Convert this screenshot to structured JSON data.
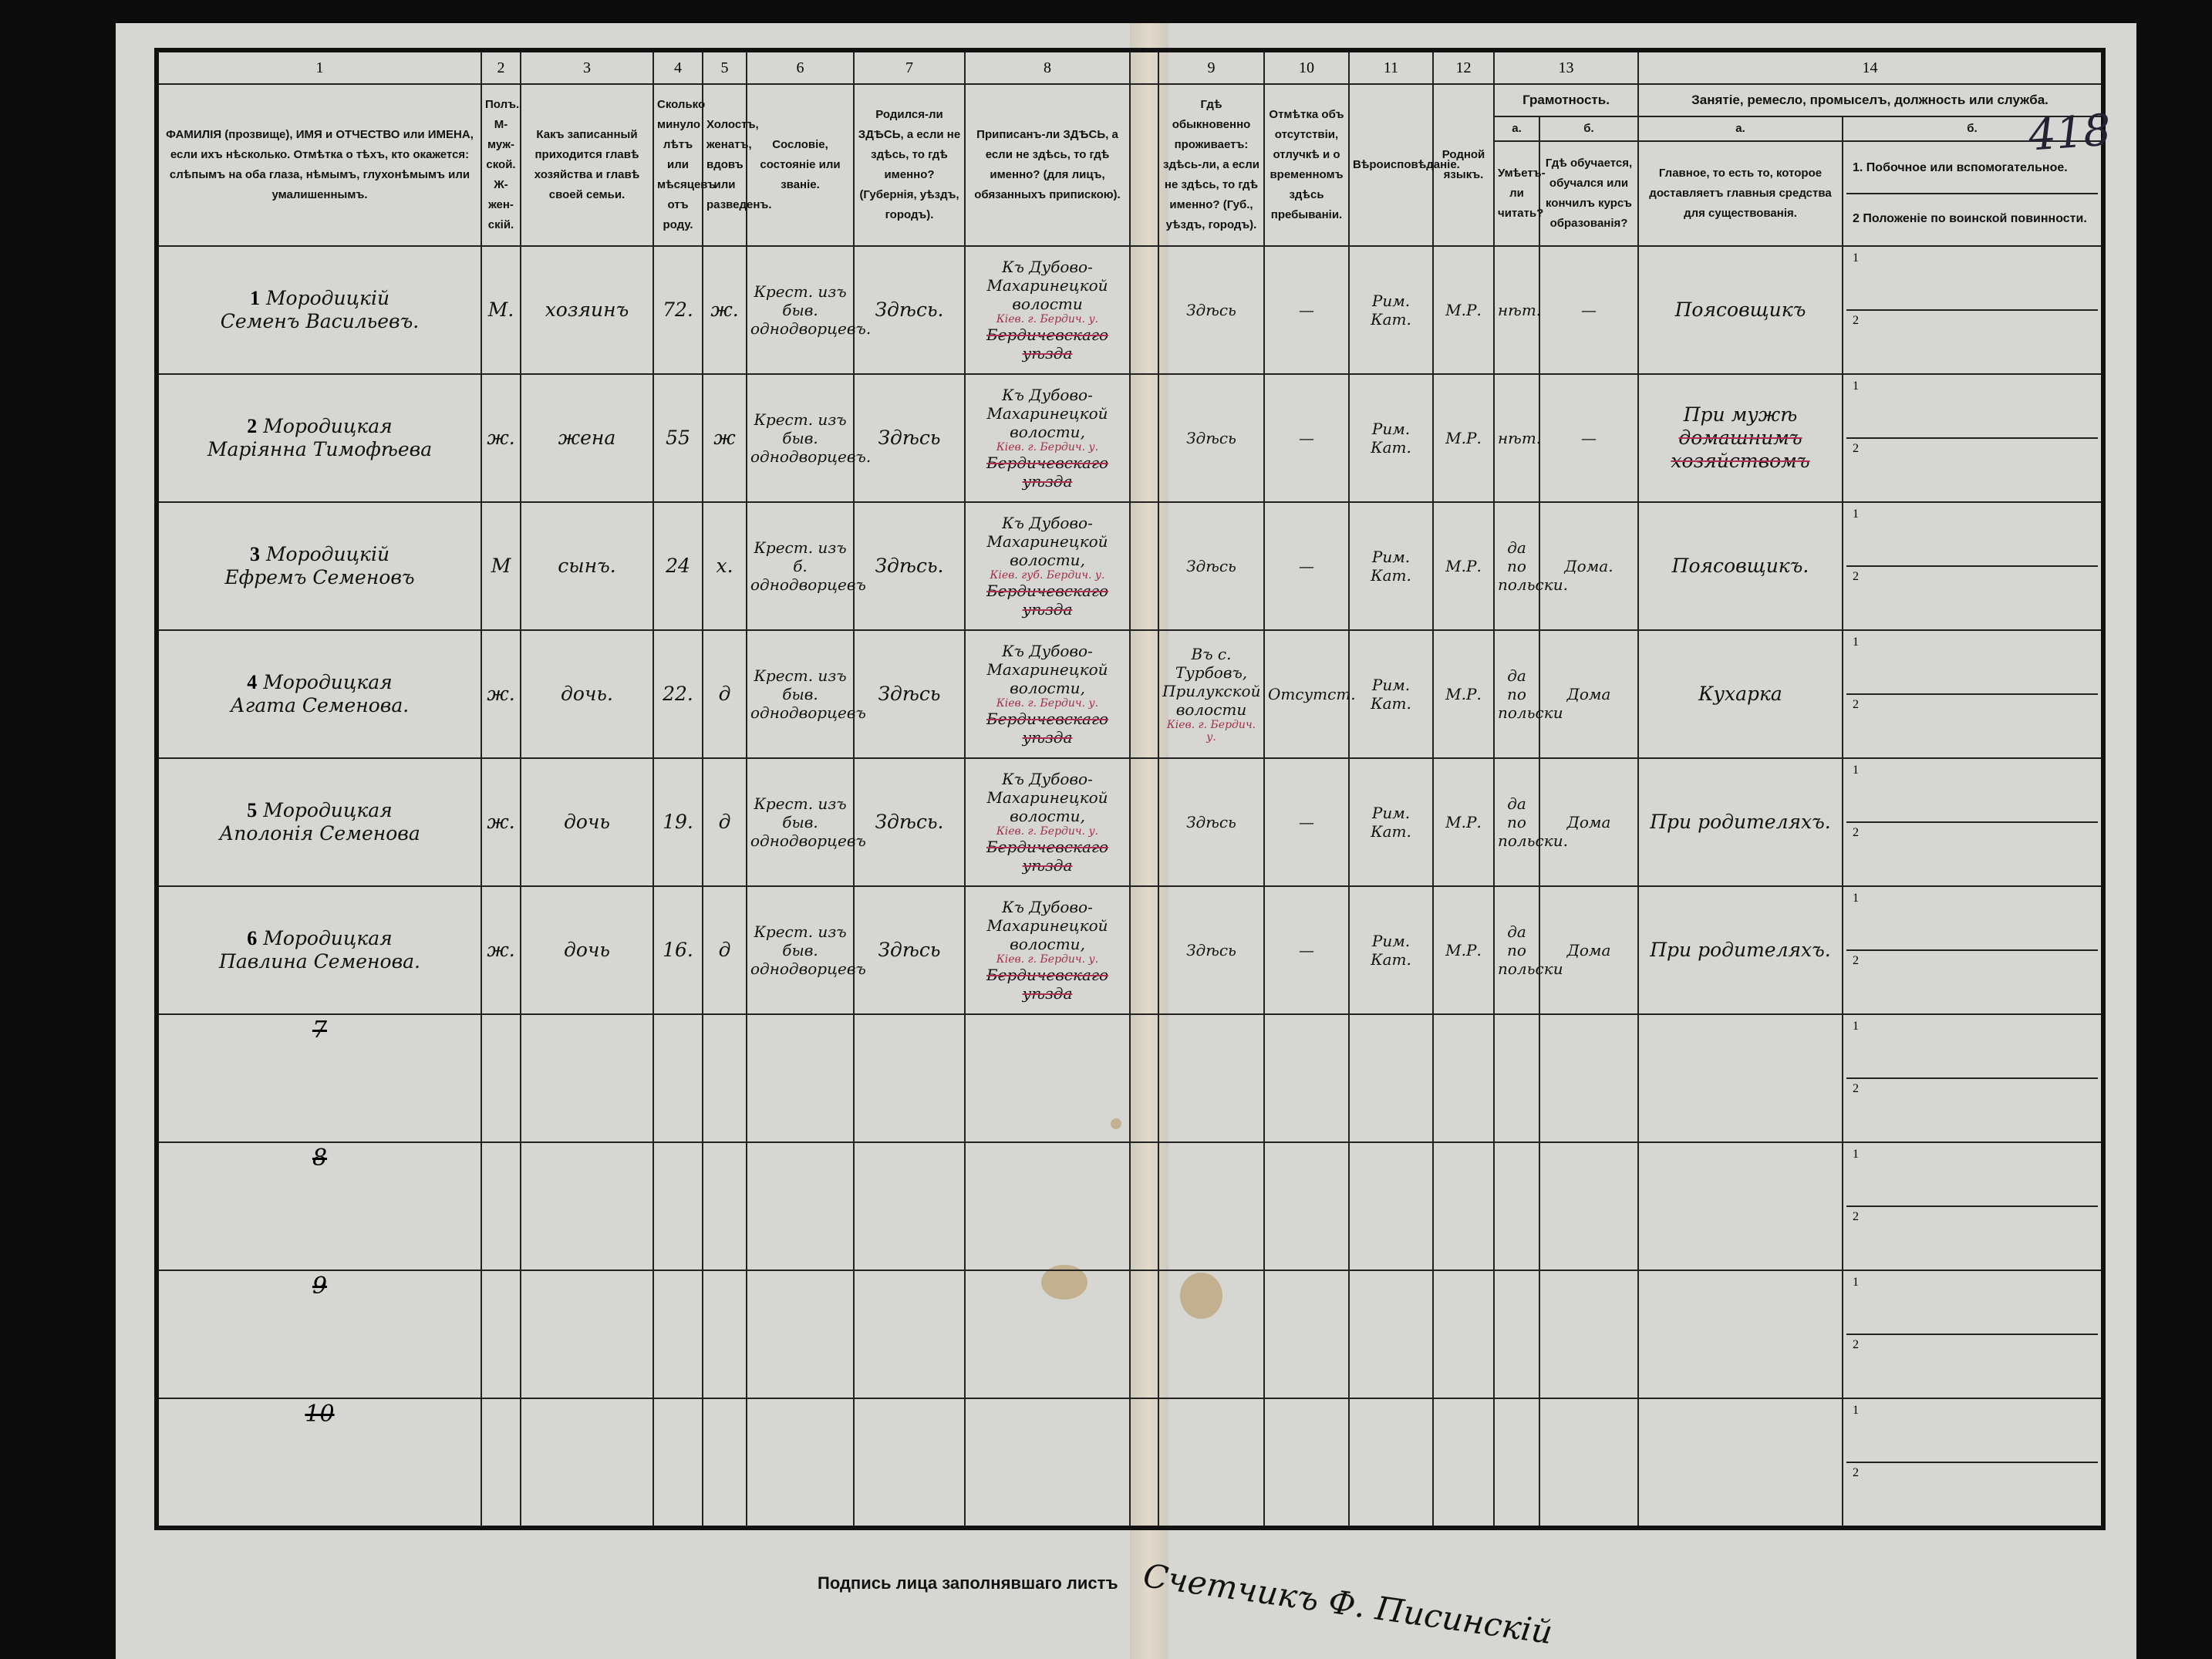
{
  "page_number": "418",
  "columns": [
    {
      "num": "1",
      "text": "ФАМИЛІЯ (прозвище), ИМЯ и ОТЧЕСТВО или ИМЕНА, если ихъ нѣсколько. Отмѣтка о тѣхъ, кто окажется: слѣпымъ на оба глаза, нѣмымъ, глухонѣмымъ или умалишеннымъ."
    },
    {
      "num": "2",
      "text": "Полъ. М-муж-ской. Ж-жен-скій."
    },
    {
      "num": "3",
      "text": "Какъ записанный приходится главѣ хозяйства и главѣ своей семьи."
    },
    {
      "num": "4",
      "text": "Сколько минуло лѣтъ или мѣсяцевъ отъ роду."
    },
    {
      "num": "5",
      "text": "Холостъ, женатъ, вдовъ или разведенъ."
    },
    {
      "num": "6",
      "text": "Сословіе, состояніе или званіе."
    },
    {
      "num": "7",
      "text": "Родился-ли ЗДѢСЬ, а если не здѣсь, то гдѣ именно? (Губернія, уѣздъ, городъ)."
    },
    {
      "num": "8",
      "text": "Приписанъ-ли ЗДѢСЬ, а если не здѣсь, то гдѣ именно? (для лицъ, обязанныхъ припискою)."
    },
    {
      "num": "9",
      "text": "Гдѣ обыкновенно проживаетъ: здѣсь-ли, а если не здѣсь, то гдѣ именно? (Губ., уѣздъ, городъ)."
    },
    {
      "num": "10",
      "text": "Отмѣтка объ отсутствіи, отлучкѣ и о временномъ здѣсь пребываніи."
    },
    {
      "num": "11",
      "text": "Вѣроисповѣданіе."
    },
    {
      "num": "12",
      "text": "Родной языкъ."
    }
  ],
  "literacy": {
    "num": "13",
    "title": "Грамотность.",
    "a_label": "а.",
    "b_label": "б.",
    "a_text": "Умѣетъ-ли читать?",
    "b_text": "Гдѣ обучается, обучался или кончилъ курсъ образованія?"
  },
  "occupation": {
    "num": "14",
    "title": "Занятіе, ремесло, промыселъ, должность или служба.",
    "a_label": "а.",
    "b_label": "б.",
    "a_text": "Главное, то есть то, которое доставляетъ главныя средства для существованія.",
    "b1_text": "1. Побочное или вспомогательное.",
    "b2_text": "2 Положеніе по воинской повинности.",
    "b1_mark": "1",
    "b2_mark": "2"
  },
  "rows": [
    {
      "n": "1",
      "surname": "Мородицкій",
      "name": "Семенъ Васильевъ.",
      "sex": "М.",
      "relation": "хозяинъ",
      "age": "72.",
      "marital": "ж.",
      "estate": "Крест. изъ быв. однодворцевъ.",
      "born": "Здѣсь.",
      "registered": "Къ Дубово-Махаринецкой волости",
      "registered_struck": "Бердичевскаго уѣзда",
      "registered_note": "Кіев. г. Бердич. у.",
      "residence": "Здѣсь",
      "absence": "—",
      "religion": "Рим. Кат.",
      "language": "М.Р.",
      "literate": "нѣт.",
      "education": "—",
      "occupation": "Поясовщикъ",
      "occupation_struck": ""
    },
    {
      "n": "2",
      "surname": "Мородицкая",
      "name": "Маріянна Тимофѣева",
      "sex": "ж.",
      "relation": "жена",
      "age": "55",
      "marital": "ж",
      "estate": "Крест. изъ быв. однодворцевъ.",
      "born": "Здѣсь",
      "registered": "Къ Дубово-Махаринецкой волости,",
      "registered_struck": "Бердичевскаго уѣзда",
      "registered_note": "Кіев. г. Бердич. у.",
      "residence": "Здѣсь",
      "absence": "—",
      "religion": "Рим. Кат.",
      "language": "М.Р.",
      "literate": "нѣт.",
      "education": "—",
      "occupation": "При мужѣ",
      "occupation_struck": "домашнимъ хозяйствомъ"
    },
    {
      "n": "3",
      "surname": "Мородицкій",
      "name": "Ефремъ Семеновъ",
      "sex": "М",
      "relation": "сынъ.",
      "age": "24",
      "marital": "х.",
      "estate": "Крест. изъ б. однодворцевъ",
      "born": "Здѣсь.",
      "registered": "Къ Дубово-Махаринецкой волости,",
      "registered_struck": "Бердичевскаго уѣзда",
      "registered_note": "Кіев. губ. Бердич. у.",
      "residence": "Здѣсь",
      "absence": "—",
      "religion": "Рим. Кат.",
      "language": "М.Р.",
      "literate": "да по польски.",
      "education": "Дома.",
      "occupation": "Поясовщикъ.",
      "occupation_struck": ""
    },
    {
      "n": "4",
      "surname": "Мородицкая",
      "name": "Агата Семенова.",
      "sex": "ж.",
      "relation": "дочь.",
      "age": "22.",
      "marital": "д",
      "estate": "Крест. изъ быв. однодворцевъ",
      "born": "Здѣсь",
      "registered": "Къ Дубово-Махаринецкой волости,",
      "registered_struck": "Бердичевскаго уѣзда",
      "registered_note": "Кіев. г. Бердич. у.",
      "residence": "Въ с. Турбовъ, Прилукской волости",
      "residence_note": "Кіев. г. Бердич. у.",
      "absence": "Отсутст.",
      "religion": "Рим. Кат.",
      "language": "М.Р.",
      "literate": "да по польски",
      "education": "Дома",
      "occupation": "Кухарка",
      "occupation_struck": ""
    },
    {
      "n": "5",
      "surname": "Мородицкая",
      "name": "Аполонія Семенова",
      "sex": "ж.",
      "relation": "дочь",
      "age": "19.",
      "marital": "д",
      "estate": "Крест. изъ быв. однодворцевъ",
      "born": "Здѣсь.",
      "registered": "Къ Дубово-Махаринецкой волости,",
      "registered_struck": "Бердичевскаго уѣзда",
      "registered_note": "Кіев. г. Бердич. у.",
      "residence": "Здѣсь",
      "absence": "—",
      "religion": "Рим. Кат.",
      "language": "М.Р.",
      "literate": "да по польски.",
      "education": "Дома",
      "occupation": "При родителяхъ.",
      "occupation_struck": ""
    },
    {
      "n": "6",
      "surname": "Мородицкая",
      "name": "Павлина Семенова.",
      "sex": "ж.",
      "relation": "дочь",
      "age": "16.",
      "marital": "д",
      "estate": "Крест. изъ быв. однодворцевъ",
      "born": "Здѣсь",
      "registered": "Къ Дубово-Махаринецкой волости,",
      "registered_struck": "Бердичевскаго уѣзда",
      "registered_note": "Кіев. г. Бердич. у.",
      "residence": "Здѣсь",
      "absence": "—",
      "religion": "Рим. Кат.",
      "language": "М.Р.",
      "literate": "да по польски",
      "education": "Дома",
      "occupation": "При родителяхъ.",
      "occupation_struck": ""
    }
  ],
  "empty_rows": [
    "7",
    "8",
    "9",
    "10"
  ],
  "signature": {
    "label": "Подпись лица заполнявшаго листъ",
    "value": "Счетчикъ Ф. Писинскій"
  }
}
